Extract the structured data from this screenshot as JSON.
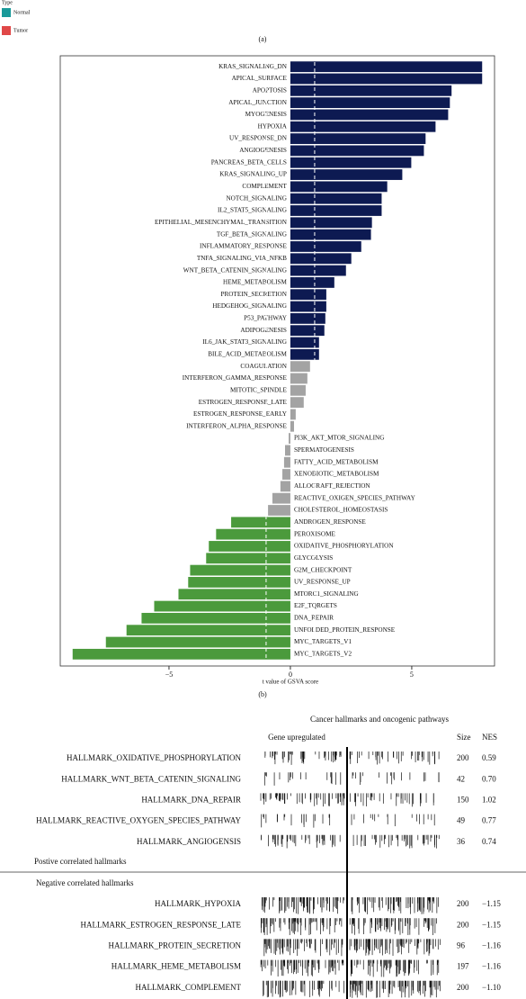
{
  "legend": {
    "title": "Type",
    "items": [
      {
        "label": "Normal",
        "color": "#1a9a9a"
      },
      {
        "label": "Tumor",
        "color": "#e04848"
      }
    ]
  },
  "panel_a_label": "(a)",
  "panel_b_label": "(b)",
  "chart_data": {
    "type": "hbar",
    "x_label": "t value of GSVA score",
    "categories": [
      "KRAS_SIGNALING_DN",
      "APICAL_SURFACE",
      "APOPTOSIS",
      "APICAL_JUNCTION",
      "MYOGENESIS",
      "HYPOXIA",
      "UV_RESPONSE_DN",
      "ANGIOGENESIS",
      "PANCREAS_BETA_CELLS",
      "KRAS_SIGNALING_UP",
      "COMPLEMENT",
      "NOTCH_SIGNALING",
      "IL2_STAT5_SIGNALING",
      "EPITHELIAL_MESENCHYMAL_TRANSITION",
      "TGF_BETA_SIGNALING",
      "INFLAMMATORY_RESPONSE",
      "TNFA_SIGNALING_VIA_NFKB",
      "WNT_BETA_CATENIN_SIGNALING",
      "HEME_METABOLISM",
      "PROTEIN_SECRETION",
      "HEDGEHOG_SIGNALING",
      "P53_PATHWAY",
      "ADIPOGENESIS",
      "IL6_JAK_STAT3_SIGNALING",
      "BILE_ACID_METABOLISM",
      "COAGULATION",
      "INTERFERON_GAMMA_RESPONSE",
      "MITOTIC_SPINDLE",
      "ESTROGEN_RESPONSE_LATE",
      "ESTROGEN_RESPONSE_EARLY",
      "INTERFERON_ALPHA_RESPONSE",
      "PI3K_AKT_MTOR_SIGNALING",
      "SPERMATOGENESIS",
      "FATTY_ACID_METABOLISM",
      "XENOBIOTIC_METABOLISM",
      "ALLOGRAFT_REJECTION",
      "REACTIVE_OXIGEN_SPECIES_PATHWAY",
      "CHOLESTEROL_HOMEOSTASIS",
      "ANDROGEN_RESPONSE",
      "PEROXISOME",
      "OXIDATIVE_PHOSPHORYLATION",
      "GLYCOLYSIS",
      "G2M_CHECKPOINT",
      "UV_RESPONSE_UP",
      "MTORC1_SIGNALING",
      "E2F_TQRGETS",
      "DNA_REPAIR",
      "UNFOLDED_PROTEIN_RESPONSE",
      "MYC_TARGETS_V1",
      "MYC_TARGETS_V2"
    ],
    "values": [
      7.9,
      7.9,
      6.64,
      6.57,
      6.5,
      5.98,
      5.57,
      5.5,
      4.98,
      4.61,
      3.99,
      3.76,
      3.76,
      3.36,
      3.32,
      2.92,
      2.51,
      2.29,
      1.81,
      1.48,
      1.48,
      1.44,
      1.4,
      1.18,
      1.18,
      0.81,
      0.7,
      0.63,
      0.55,
      0.22,
      0.15,
      -0.07,
      -0.22,
      -0.26,
      -0.33,
      -0.41,
      -0.74,
      -0.92,
      -2.44,
      -3.06,
      -3.36,
      -3.47,
      -4.13,
      -4.21,
      -4.61,
      -5.61,
      -6.13,
      -6.75,
      -7.6,
      -8.97
    ],
    "bar_colors": [
      "#0d1a52",
      "#0d1a52",
      "#0d1a52",
      "#0d1a52",
      "#0d1a52",
      "#0d1a52",
      "#0d1a52",
      "#0d1a52",
      "#0d1a52",
      "#0d1a52",
      "#0d1a52",
      "#0d1a52",
      "#0d1a52",
      "#0d1a52",
      "#0d1a52",
      "#0d1a52",
      "#0d1a52",
      "#0d1a52",
      "#0d1a52",
      "#0d1a52",
      "#0d1a52",
      "#0d1a52",
      "#0d1a52",
      "#0d1a52",
      "#0d1a52",
      "#a3a3a3",
      "#a3a3a3",
      "#a3a3a3",
      "#a3a3a3",
      "#a3a3a3",
      "#a3a3a3",
      "#a3a3a3",
      "#a3a3a3",
      "#a3a3a3",
      "#a3a3a3",
      "#a3a3a3",
      "#a3a3a3",
      "#a3a3a3",
      "#4b9a3c",
      "#4b9a3c",
      "#4b9a3c",
      "#4b9a3c",
      "#4b9a3c",
      "#4b9a3c",
      "#4b9a3c",
      "#4b9a3c",
      "#4b9a3c",
      "#4b9a3c",
      "#4b9a3c",
      "#4b9a3c"
    ],
    "xlim": [
      -9.48,
      8.41
    ],
    "xticks": [
      {
        "value": -5,
        "label": "−5"
      },
      0,
      5
    ],
    "reference_lines": [
      1,
      -1
    ]
  },
  "panel_b": {
    "title": "Cancer hallmarks and oncogenic pathways",
    "upregulated_header": "Gene upregulated",
    "size_header": "Size",
    "nes_header": "NES",
    "positive_label": "Postive correlated hallmarks",
    "negative_label": "Negative correlated hallmarks",
    "positive_rows": [
      {
        "name": "HALLMARK_OXIDATIVE_PHOSPHORYLATION",
        "size": 200,
        "nes": "0.59"
      },
      {
        "name": "HALLMARK_WNT_BETA_CATENIN_SIGNALING",
        "size": 42,
        "nes": "0.70"
      },
      {
        "name": "HALLMARK_DNA_REPAIR",
        "size": 150,
        "nes": "1.02"
      },
      {
        "name": "HALLMARK_REACTIVE_OXYGEN_SPECIES_PATHWAY",
        "size": 49,
        "nes": "0.77"
      },
      {
        "name": "HALLMARK_ANGIOGENSIS",
        "size": 36,
        "nes": "0.74"
      }
    ],
    "negative_rows": [
      {
        "name": "HALLMARK_HYPOXIA",
        "size": 200,
        "nes": "−1.15"
      },
      {
        "name": "HALLMARK_ESTROGEN_RESPONSE_LATE",
        "size": 200,
        "nes": "−1.15"
      },
      {
        "name": "HALLMARK_PROTEIN_SECRETION",
        "size": 96,
        "nes": "−1.16"
      },
      {
        "name": "HALLMARK_HEME_METABOLISM",
        "size": 197,
        "nes": "−1.16"
      },
      {
        "name": "HALLMARK_COMPLEMENT",
        "size": 200,
        "nes": "−1.10"
      }
    ]
  }
}
